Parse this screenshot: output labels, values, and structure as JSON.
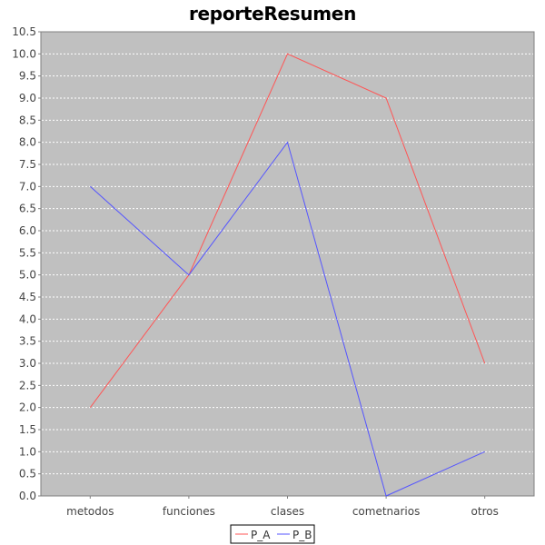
{
  "chart_data": {
    "type": "line",
    "title": "reporteResumen",
    "xlabel": "",
    "ylabel": "",
    "categories": [
      "metodos",
      "funciones",
      "clases",
      "cometnarios",
      "otros"
    ],
    "series": [
      {
        "name": "P_A",
        "color": "#ff5555",
        "values": [
          2,
          5,
          10,
          9,
          3
        ]
      },
      {
        "name": "P_B",
        "color": "#5555ff",
        "values": [
          7,
          5,
          8,
          0,
          1
        ]
      }
    ],
    "ylim": [
      0,
      10.5
    ],
    "ytick_step": 0.5,
    "ytick_labels": [
      "0.0",
      "0.5",
      "1.0",
      "1.5",
      "2.0",
      "2.5",
      "3.0",
      "3.5",
      "4.0",
      "4.5",
      "5.0",
      "5.5",
      "6.0",
      "6.5",
      "7.0",
      "7.5",
      "8.0",
      "8.5",
      "9.0",
      "9.5",
      "10.0",
      "10.5"
    ],
    "grid": true,
    "legend_position": "bottom",
    "plot_background": "#c0c0c0"
  }
}
